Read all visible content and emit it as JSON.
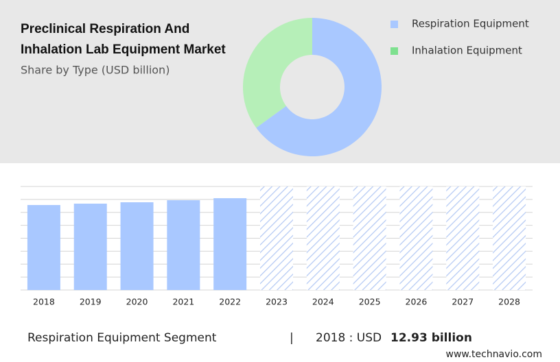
{
  "chart_data": [
    {
      "type": "donut",
      "title": [
        "Preclinical Respiration And",
        "Inhalation Lab Equipment Market"
      ],
      "subtitle": "Share by Type (USD billion)",
      "series": [
        {
          "name": "Respiration Equipment",
          "color": "#a9c8ff",
          "values": [
            65
          ]
        },
        {
          "name": "Inhalation Equipment",
          "color": "#b6efb8",
          "values": [
            35
          ]
        }
      ],
      "legend_colors": [
        "#a9c8ff",
        "#7ee08f"
      ]
    },
    {
      "type": "bar",
      "categories": [
        "2018",
        "2019",
        "2020",
        "2021",
        "2022",
        "2023",
        "2024",
        "2025",
        "2026",
        "2027",
        "2028"
      ],
      "values": [
        12.93,
        13.14,
        13.35,
        13.66,
        13.97,
        null,
        null,
        null,
        null,
        null,
        null
      ],
      "color": "#a9c8ff",
      "ylim": [
        0,
        15.75
      ]
    }
  ],
  "highlight": {
    "segment": "Respiration Equipment Segment",
    "separator": "|",
    "period": "2018 : USD",
    "value": "12.93 billion"
  },
  "source": "www.technavio.com"
}
